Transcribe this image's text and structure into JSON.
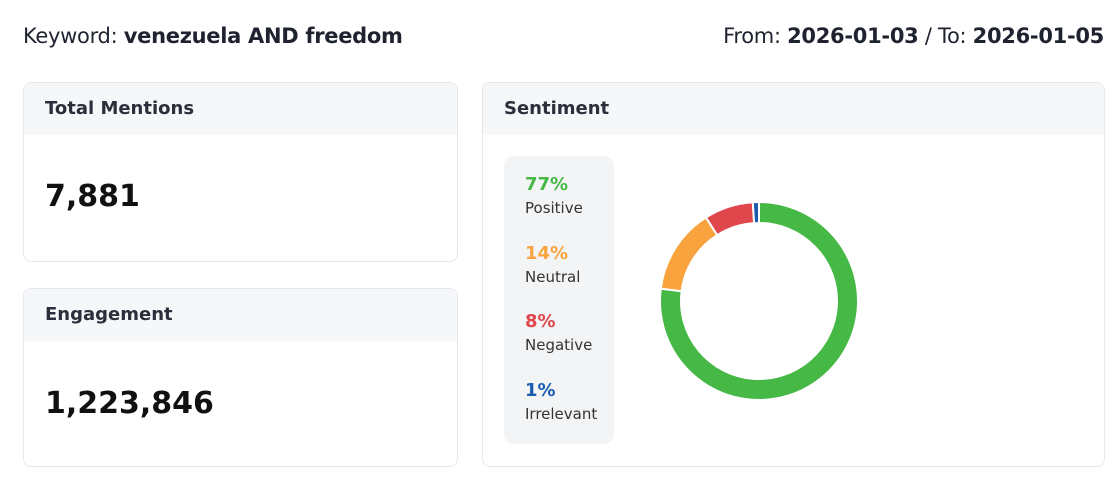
{
  "header": {
    "keyword_label": "Keyword:",
    "keyword": "venezuela AND freedom",
    "from_label": "From:",
    "from": "2026-01-03",
    "to_label": "/ To:",
    "to": "2026-01-05"
  },
  "cards": [
    {
      "title": "Total Mentions",
      "value": "7,881"
    },
    {
      "title": "Engagement",
      "value": "1,223,846"
    }
  ],
  "chart_data": {
    "type": "donut",
    "title": "Sentiment",
    "categories": [
      "Positive",
      "Neutral",
      "Negative",
      "Irrelevant"
    ],
    "values": [
      77,
      14,
      8,
      1
    ],
    "value_labels": [
      "77%",
      "14%",
      "8%",
      "1%"
    ],
    "colors": [
      "#45b845",
      "#f9a33f",
      "#e0474c",
      "#1b5cb0"
    ]
  }
}
